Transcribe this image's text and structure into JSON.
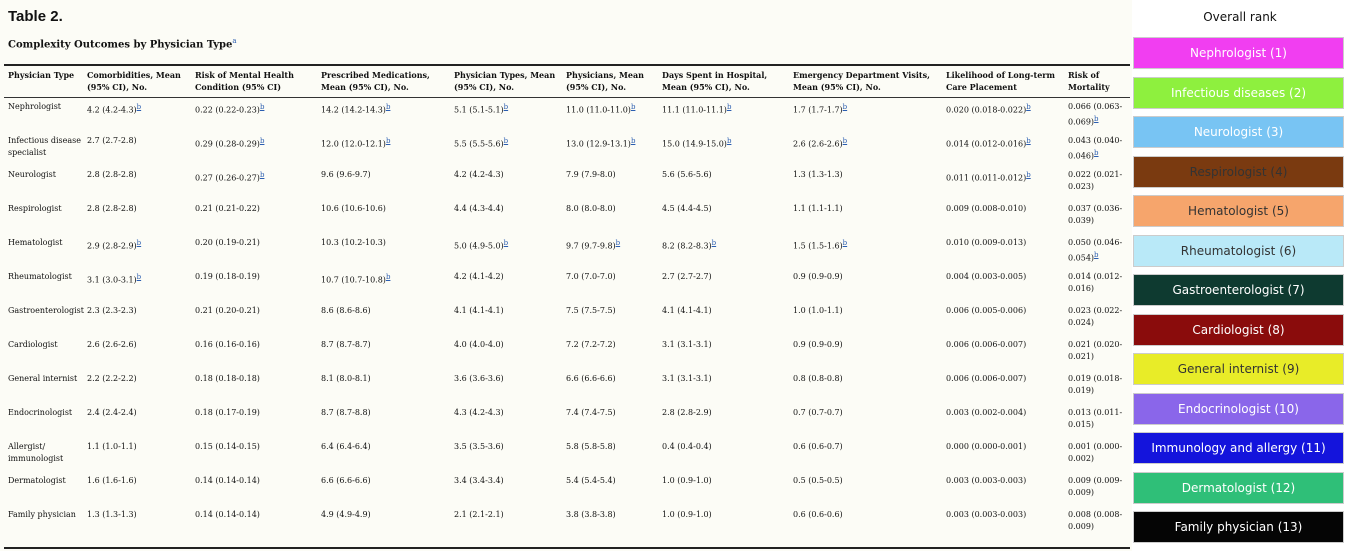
{
  "table": {
    "label": "Table 2.",
    "caption": "Complexity Outcomes by Physician Type",
    "caption_note": "a",
    "columns": [
      "Physician Type",
      "Comorbidities, Mean (95% CI), No.",
      "Risk of Mental Health Condition (95% CI)",
      "Prescribed Medications, Mean (95% CI), No.",
      "Physician Types, Mean (95% CI), No.",
      "Physicians, Mean (95% CI), No.",
      "Days Spent in Hospital, Mean (95% CI), No.",
      "Emergency Department Visits, Mean (95% CI), No.",
      "Likelihood of Long-term Care Placement",
      "Risk of Mortality"
    ],
    "rows": [
      [
        {
          "t": "Nephrologist"
        },
        {
          "t": "4.2 (4.2-4.3)",
          "n": "b"
        },
        {
          "t": "0.22 (0.22-0.23)",
          "n": "b"
        },
        {
          "t": "14.2 (14.2-14.3)",
          "n": "b"
        },
        {
          "t": "5.1 (5.1-5.1)",
          "n": "b"
        },
        {
          "t": "11.0 (11.0-11.0)",
          "n": "b"
        },
        {
          "t": "11.1 (11.0-11.1)",
          "n": "b"
        },
        {
          "t": "1.7 (1.7-1.7)",
          "n": "b"
        },
        {
          "t": "0.020 (0.018-0.022)",
          "n": "b"
        },
        {
          "t": "0.066 (0.063-0.069)",
          "n": "b"
        }
      ],
      [
        {
          "t": "Infectious disease specialist"
        },
        {
          "t": "2.7 (2.7-2.8)"
        },
        {
          "t": "0.29 (0.28-0.29)",
          "n": "b"
        },
        {
          "t": "12.0 (12.0-12.1)",
          "n": "b"
        },
        {
          "t": "5.5 (5.5-5.6)",
          "n": "b"
        },
        {
          "t": "13.0 (12.9-13.1)",
          "n": "b"
        },
        {
          "t": "15.0 (14.9-15.0)",
          "n": "b"
        },
        {
          "t": "2.6 (2.6-2.6)",
          "n": "b"
        },
        {
          "t": "0.014 (0.012-0.016)",
          "n": "b"
        },
        {
          "t": "0.043 (0.040-0.046)",
          "n": "b"
        }
      ],
      [
        {
          "t": "Neurologist"
        },
        {
          "t": "2.8 (2.8-2.8)"
        },
        {
          "t": "0.27 (0.26-0.27)",
          "n": "b"
        },
        {
          "t": "9.6 (9.6-9.7)"
        },
        {
          "t": "4.2 (4.2-4.3)"
        },
        {
          "t": "7.9 (7.9-8.0)"
        },
        {
          "t": "5.6 (5.6-5.6)"
        },
        {
          "t": "1.3 (1.3-1.3)"
        },
        {
          "t": "0.011 (0.011-0.012)",
          "n": "b"
        },
        {
          "t": "0.022 (0.021-0.023)"
        }
      ],
      [
        {
          "t": "Respirologist"
        },
        {
          "t": "2.8 (2.8-2.8)"
        },
        {
          "t": "0.21 (0.21-0.22)"
        },
        {
          "t": "10.6 (10.6-10.6)"
        },
        {
          "t": "4.4 (4.3-4.4)"
        },
        {
          "t": "8.0 (8.0-8.0)"
        },
        {
          "t": "4.5 (4.4-4.5)"
        },
        {
          "t": "1.1 (1.1-1.1)"
        },
        {
          "t": "0.009 (0.008-0.010)"
        },
        {
          "t": "0.037 (0.036-0.039)"
        }
      ],
      [
        {
          "t": "Hematologist"
        },
        {
          "t": "2.9 (2.8-2.9)",
          "n": "b"
        },
        {
          "t": "0.20 (0.19-0.21)"
        },
        {
          "t": "10.3 (10.2-10.3)"
        },
        {
          "t": "5.0 (4.9-5.0)",
          "n": "b"
        },
        {
          "t": "9.7 (9.7-9.8)",
          "n": "b"
        },
        {
          "t": "8.2 (8.2-8.3)",
          "n": "b"
        },
        {
          "t": "1.5 (1.5-1.6)",
          "n": "b"
        },
        {
          "t": "0.010 (0.009-0.013)"
        },
        {
          "t": "0.050 (0.046-0.054)",
          "n": "b"
        }
      ],
      [
        {
          "t": "Rheumatologist"
        },
        {
          "t": "3.1 (3.0-3.1)",
          "n": "b"
        },
        {
          "t": "0.19 (0.18-0.19)"
        },
        {
          "t": "10.7 (10.7-10.8)",
          "n": "b"
        },
        {
          "t": "4.2 (4.1-4.2)"
        },
        {
          "t": "7.0 (7.0-7.0)"
        },
        {
          "t": "2.7 (2.7-2.7)"
        },
        {
          "t": "0.9 (0.9-0.9)"
        },
        {
          "t": "0.004 (0.003-0.005)"
        },
        {
          "t": "0.014 (0.012-0.016)"
        }
      ],
      [
        {
          "t": "Gastroenterologist"
        },
        {
          "t": "2.3 (2.3-2.3)"
        },
        {
          "t": "0.21 (0.20-0.21)"
        },
        {
          "t": "8.6 (8.6-8.6)"
        },
        {
          "t": "4.1 (4.1-4.1)"
        },
        {
          "t": "7.5 (7.5-7.5)"
        },
        {
          "t": "4.1 (4.1-4.1)"
        },
        {
          "t": "1.0 (1.0-1.1)"
        },
        {
          "t": "0.006 (0.005-0.006)"
        },
        {
          "t": "0.023 (0.022-0.024)"
        }
      ],
      [
        {
          "t": "Cardiologist"
        },
        {
          "t": "2.6 (2.6-2.6)"
        },
        {
          "t": "0.16 (0.16-0.16)"
        },
        {
          "t": "8.7 (8.7-8.7)"
        },
        {
          "t": "4.0 (4.0-4.0)"
        },
        {
          "t": "7.2 (7.2-7.2)"
        },
        {
          "t": "3.1 (3.1-3.1)"
        },
        {
          "t": "0.9 (0.9-0.9)"
        },
        {
          "t": "0.006 (0.006-0.007)"
        },
        {
          "t": "0.021 (0.020-0.021)"
        }
      ],
      [
        {
          "t": "General internist"
        },
        {
          "t": "2.2 (2.2-2.2)"
        },
        {
          "t": "0.18 (0.18-0.18)"
        },
        {
          "t": "8.1 (8.0-8.1)"
        },
        {
          "t": "3.6 (3.6-3.6)"
        },
        {
          "t": "6.6 (6.6-6.6)"
        },
        {
          "t": "3.1 (3.1-3.1)"
        },
        {
          "t": "0.8 (0.8-0.8)"
        },
        {
          "t": "0.006 (0.006-0.007)"
        },
        {
          "t": "0.019 (0.018-0.019)"
        }
      ],
      [
        {
          "t": "Endocrinologist"
        },
        {
          "t": "2.4 (2.4-2.4)"
        },
        {
          "t": "0.18 (0.17-0.19)"
        },
        {
          "t": "8.7 (8.7-8.8)"
        },
        {
          "t": "4.3 (4.2-4.3)"
        },
        {
          "t": "7.4 (7.4-7.5)"
        },
        {
          "t": "2.8 (2.8-2.9)"
        },
        {
          "t": "0.7 (0.7-0.7)"
        },
        {
          "t": "0.003 (0.002-0.004)"
        },
        {
          "t": "0.013 (0.011-0.015)"
        }
      ],
      [
        {
          "t": "Allergist/ immunologist"
        },
        {
          "t": "1.1 (1.0-1.1)"
        },
        {
          "t": "0.15 (0.14-0.15)"
        },
        {
          "t": "6.4 (6.4-6.4)"
        },
        {
          "t": "3.5 (3.5-3.6)"
        },
        {
          "t": "5.8 (5.8-5.8)"
        },
        {
          "t": "0.4 (0.4-0.4)"
        },
        {
          "t": "0.6 (0.6-0.7)"
        },
        {
          "t": "0.000 (0.000-0.001)"
        },
        {
          "t": "0.001 (0.000-0.002)"
        }
      ],
      [
        {
          "t": "Dermatologist"
        },
        {
          "t": "1.6 (1.6-1.6)"
        },
        {
          "t": "0.14 (0.14-0.14)"
        },
        {
          "t": "6.6 (6.6-6.6)"
        },
        {
          "t": "3.4 (3.4-3.4)"
        },
        {
          "t": "5.4 (5.4-5.4)"
        },
        {
          "t": "1.0 (0.9-1.0)"
        },
        {
          "t": "0.5 (0.5-0.5)"
        },
        {
          "t": "0.003 (0.003-0.003)"
        },
        {
          "t": "0.009 (0.009-0.009)"
        }
      ],
      [
        {
          "t": "Family physician"
        },
        {
          "t": "1.3 (1.3-1.3)"
        },
        {
          "t": "0.14 (0.14-0.14)"
        },
        {
          "t": "4.9 (4.9-4.9)"
        },
        {
          "t": "2.1 (2.1-2.1)"
        },
        {
          "t": "3.8 (3.8-3.8)"
        },
        {
          "t": "1.0 (0.9-1.0)"
        },
        {
          "t": "0.6 (0.6-0.6)"
        },
        {
          "t": "0.003 (0.003-0.003)"
        },
        {
          "t": "0.008 (0.008-0.009)"
        }
      ]
    ]
  },
  "ranking": {
    "title": "Overall rank",
    "items": [
      {
        "label": "Nephrologist (1)",
        "color": "#f13ef1"
      },
      {
        "label": "Infectious diseases (2)",
        "color": "#8ef03e"
      },
      {
        "label": "Neurologist (3)",
        "color": "#78c4f3"
      },
      {
        "label": "Respirologist (4)",
        "color": "#7a3a10",
        "dark_text": true
      },
      {
        "label": "Hematologist (5)",
        "color": "#f6a56c",
        "dark_text": true
      },
      {
        "label": "Rheumatologist (6)",
        "color": "#b9e9f8",
        "dark_text": true
      },
      {
        "label": "Gastroenterologist (7)",
        "color": "#0e3a30"
      },
      {
        "label": "Cardiologist (8)",
        "color": "#8a0c0c"
      },
      {
        "label": "General internist (9)",
        "color": "#e8ec28",
        "dark_text": true
      },
      {
        "label": "Endocrinologist (10)",
        "color": "#8a66ea"
      },
      {
        "label": "Immunology and allergy (11)",
        "color": "#1414dc"
      },
      {
        "label": "Dermatologist (12)",
        "color": "#2fbf78"
      },
      {
        "label": "Family physician (13)",
        "color": "#050505"
      }
    ]
  }
}
